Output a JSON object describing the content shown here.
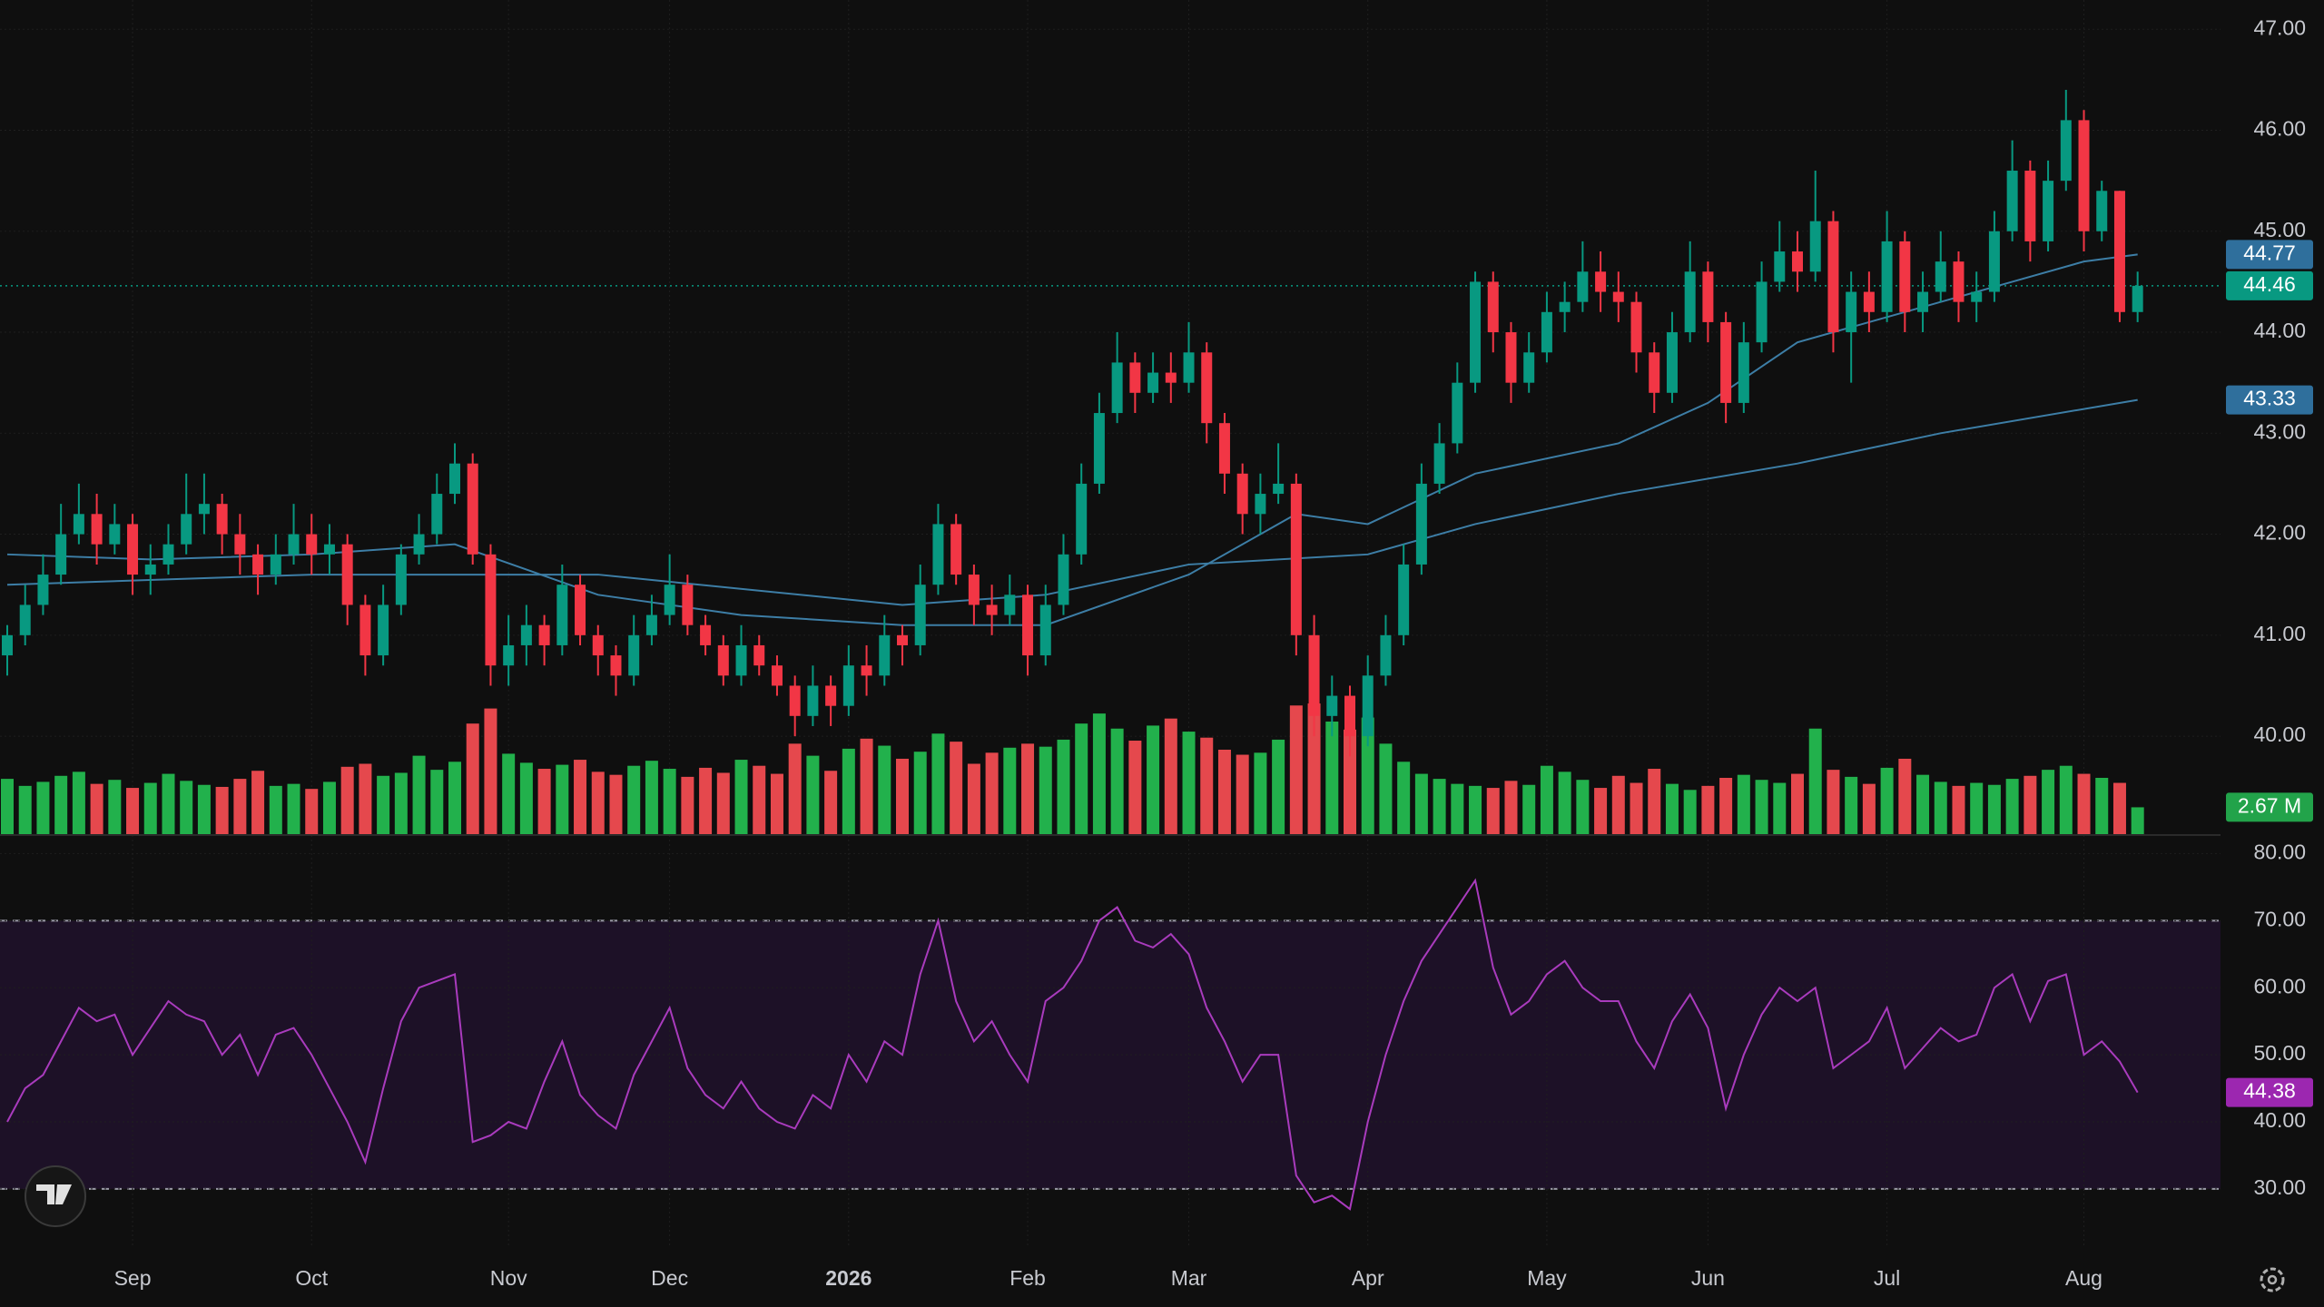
{
  "chart_data": {
    "type": "candlestick",
    "up_color": "#089981",
    "down_color": "#f23645",
    "ylim": [
      39.03,
      47.29
    ],
    "yticks": [
      {
        "value": 40,
        "label": "40.00"
      },
      {
        "value": 41,
        "label": "41.00"
      },
      {
        "value": 42,
        "label": "42.00"
      },
      {
        "value": 43,
        "label": "43.00"
      },
      {
        "value": 44,
        "label": "44.00"
      },
      {
        "value": 45,
        "label": "45.00"
      },
      {
        "value": 46,
        "label": "46.00"
      },
      {
        "value": 47,
        "label": "47.00"
      }
    ],
    "xticks": [
      {
        "value": 7,
        "label": "Sep"
      },
      {
        "value": 17,
        "label": "Oct"
      },
      {
        "value": 28,
        "label": "Nov"
      },
      {
        "value": 37,
        "label": "Dec"
      },
      {
        "value": 47,
        "label": "2026"
      },
      {
        "value": 57,
        "label": "Feb"
      },
      {
        "value": 66,
        "label": "Mar"
      },
      {
        "value": 76,
        "label": "Apr"
      },
      {
        "value": 86,
        "label": "May"
      },
      {
        "value": 95,
        "label": "Jun"
      },
      {
        "value": 105,
        "label": "Jul"
      },
      {
        "value": 116,
        "label": "Aug"
      }
    ],
    "grid": true,
    "candles": [
      [
        40.8,
        41.1,
        40.6,
        41.0
      ],
      [
        41.0,
        41.5,
        40.9,
        41.3
      ],
      [
        41.3,
        41.8,
        41.2,
        41.6
      ],
      [
        41.6,
        42.3,
        41.5,
        42.0
      ],
      [
        42.0,
        42.5,
        41.9,
        42.2
      ],
      [
        42.2,
        42.4,
        41.7,
        41.9
      ],
      [
        41.9,
        42.3,
        41.8,
        42.1
      ],
      [
        42.1,
        42.2,
        41.4,
        41.6
      ],
      [
        41.6,
        41.9,
        41.4,
        41.7
      ],
      [
        41.7,
        42.1,
        41.6,
        41.9
      ],
      [
        41.9,
        42.6,
        41.8,
        42.2
      ],
      [
        42.2,
        42.6,
        42.0,
        42.3
      ],
      [
        42.3,
        42.4,
        41.8,
        42.0
      ],
      [
        42.0,
        42.2,
        41.6,
        41.8
      ],
      [
        41.8,
        41.9,
        41.4,
        41.6
      ],
      [
        41.6,
        42.0,
        41.5,
        41.8
      ],
      [
        41.8,
        42.3,
        41.7,
        42.0
      ],
      [
        42.0,
        42.2,
        41.6,
        41.8
      ],
      [
        41.8,
        42.1,
        41.6,
        41.9
      ],
      [
        41.9,
        42.0,
        41.1,
        41.3
      ],
      [
        41.3,
        41.4,
        40.6,
        40.8
      ],
      [
        40.8,
        41.5,
        40.7,
        41.3
      ],
      [
        41.3,
        41.9,
        41.2,
        41.8
      ],
      [
        41.8,
        42.2,
        41.7,
        42.0
      ],
      [
        42.0,
        42.6,
        41.9,
        42.4
      ],
      [
        42.4,
        42.9,
        42.3,
        42.7
      ],
      [
        42.7,
        42.8,
        41.7,
        41.8
      ],
      [
        41.8,
        41.9,
        40.5,
        40.7
      ],
      [
        40.7,
        41.2,
        40.5,
        40.9
      ],
      [
        40.9,
        41.3,
        40.7,
        41.1
      ],
      [
        41.1,
        41.2,
        40.7,
        40.9
      ],
      [
        40.9,
        41.7,
        40.8,
        41.5
      ],
      [
        41.5,
        41.6,
        40.9,
        41.0
      ],
      [
        41.0,
        41.1,
        40.6,
        40.8
      ],
      [
        40.8,
        40.9,
        40.4,
        40.6
      ],
      [
        40.6,
        41.2,
        40.5,
        41.0
      ],
      [
        41.0,
        41.4,
        40.9,
        41.2
      ],
      [
        41.2,
        41.8,
        41.1,
        41.5
      ],
      [
        41.5,
        41.6,
        41.0,
        41.1
      ],
      [
        41.1,
        41.2,
        40.8,
        40.9
      ],
      [
        40.9,
        41.0,
        40.5,
        40.6
      ],
      [
        40.6,
        41.1,
        40.5,
        40.9
      ],
      [
        40.9,
        41.0,
        40.6,
        40.7
      ],
      [
        40.7,
        40.8,
        40.4,
        40.5
      ],
      [
        40.5,
        40.6,
        40.0,
        40.2
      ],
      [
        40.2,
        40.7,
        40.1,
        40.5
      ],
      [
        40.5,
        40.6,
        40.1,
        40.3
      ],
      [
        40.3,
        40.9,
        40.2,
        40.7
      ],
      [
        40.7,
        40.9,
        40.4,
        40.6
      ],
      [
        40.6,
        41.2,
        40.5,
        41.0
      ],
      [
        41.0,
        41.1,
        40.7,
        40.9
      ],
      [
        40.9,
        41.7,
        40.8,
        41.5
      ],
      [
        41.5,
        42.3,
        41.4,
        42.1
      ],
      [
        42.1,
        42.2,
        41.5,
        41.6
      ],
      [
        41.6,
        41.7,
        41.1,
        41.3
      ],
      [
        41.3,
        41.5,
        41.0,
        41.2
      ],
      [
        41.2,
        41.6,
        41.1,
        41.4
      ],
      [
        41.4,
        41.5,
        40.6,
        40.8
      ],
      [
        40.8,
        41.5,
        40.7,
        41.3
      ],
      [
        41.3,
        42.0,
        41.2,
        41.8
      ],
      [
        41.8,
        42.7,
        41.7,
        42.5
      ],
      [
        42.5,
        43.4,
        42.4,
        43.2
      ],
      [
        43.2,
        44.0,
        43.1,
        43.7
      ],
      [
        43.7,
        43.8,
        43.2,
        43.4
      ],
      [
        43.4,
        43.8,
        43.3,
        43.6
      ],
      [
        43.6,
        43.8,
        43.3,
        43.5
      ],
      [
        43.5,
        44.1,
        43.4,
        43.8
      ],
      [
        43.8,
        43.9,
        42.9,
        43.1
      ],
      [
        43.1,
        43.2,
        42.4,
        42.6
      ],
      [
        42.6,
        42.7,
        42.0,
        42.2
      ],
      [
        42.2,
        42.6,
        42.0,
        42.4
      ],
      [
        42.4,
        42.9,
        42.3,
        42.5
      ],
      [
        42.5,
        42.6,
        40.8,
        41.0
      ],
      [
        41.0,
        41.2,
        40.0,
        40.2
      ],
      [
        40.2,
        40.6,
        40.0,
        40.4
      ],
      [
        40.4,
        40.5,
        39.8,
        40.0
      ],
      [
        40.0,
        40.8,
        39.9,
        40.6
      ],
      [
        40.6,
        41.2,
        40.5,
        41.0
      ],
      [
        41.0,
        41.9,
        40.9,
        41.7
      ],
      [
        41.7,
        42.7,
        41.6,
        42.5
      ],
      [
        42.5,
        43.1,
        42.4,
        42.9
      ],
      [
        42.9,
        43.7,
        42.8,
        43.5
      ],
      [
        43.5,
        44.6,
        43.4,
        44.5
      ],
      [
        44.5,
        44.6,
        43.8,
        44.0
      ],
      [
        44.0,
        44.1,
        43.3,
        43.5
      ],
      [
        43.5,
        44.0,
        43.4,
        43.8
      ],
      [
        43.8,
        44.4,
        43.7,
        44.2
      ],
      [
        44.2,
        44.5,
        44.0,
        44.3
      ],
      [
        44.3,
        44.9,
        44.2,
        44.6
      ],
      [
        44.6,
        44.8,
        44.2,
        44.4
      ],
      [
        44.4,
        44.6,
        44.1,
        44.3
      ],
      [
        44.3,
        44.4,
        43.6,
        43.8
      ],
      [
        43.8,
        43.9,
        43.2,
        43.4
      ],
      [
        43.4,
        44.2,
        43.3,
        44.0
      ],
      [
        44.0,
        44.9,
        43.9,
        44.6
      ],
      [
        44.6,
        44.7,
        43.9,
        44.1
      ],
      [
        44.1,
        44.2,
        43.1,
        43.3
      ],
      [
        43.3,
        44.1,
        43.2,
        43.9
      ],
      [
        43.9,
        44.7,
        43.8,
        44.5
      ],
      [
        44.5,
        45.1,
        44.4,
        44.8
      ],
      [
        44.8,
        45.0,
        44.4,
        44.6
      ],
      [
        44.6,
        45.6,
        44.5,
        45.1
      ],
      [
        45.1,
        45.2,
        43.8,
        44.0
      ],
      [
        44.0,
        44.6,
        43.5,
        44.4
      ],
      [
        44.4,
        44.6,
        44.0,
        44.2
      ],
      [
        44.2,
        45.2,
        44.1,
        44.9
      ],
      [
        44.9,
        45.0,
        44.0,
        44.2
      ],
      [
        44.2,
        44.6,
        44.0,
        44.4
      ],
      [
        44.4,
        45.0,
        44.3,
        44.7
      ],
      [
        44.7,
        44.8,
        44.1,
        44.3
      ],
      [
        44.3,
        44.6,
        44.1,
        44.4
      ],
      [
        44.4,
        45.2,
        44.3,
        45.0
      ],
      [
        45.0,
        45.9,
        44.9,
        45.6
      ],
      [
        45.6,
        45.7,
        44.7,
        44.9
      ],
      [
        44.9,
        45.7,
        44.8,
        45.5
      ],
      [
        45.5,
        46.4,
        45.4,
        46.1
      ],
      [
        46.1,
        46.2,
        44.8,
        45.0
      ],
      [
        45.0,
        45.5,
        44.9,
        45.4
      ],
      [
        45.4,
        45.4,
        44.1,
        44.2
      ],
      [
        44.2,
        44.6,
        44.1,
        44.46
      ]
    ],
    "last_price_color": "#089981",
    "ma_fast": {
      "color": "#3d7ea6",
      "label_color": "#2f6f9c",
      "x": [
        0,
        8,
        17,
        25,
        33,
        41,
        50,
        58,
        66,
        72,
        76,
        82,
        90,
        95,
        100,
        106,
        112,
        116,
        119
      ],
      "values": [
        41.8,
        41.75,
        41.8,
        41.9,
        41.4,
        41.2,
        41.1,
        41.1,
        41.6,
        42.2,
        42.1,
        42.6,
        42.9,
        43.3,
        43.9,
        44.2,
        44.5,
        44.7,
        44.77
      ]
    },
    "ma_slow": {
      "color": "#3d7ea6",
      "label_color": "#2f6f9c",
      "x": [
        0,
        17,
        33,
        50,
        58,
        66,
        76,
        82,
        90,
        100,
        108,
        119
      ],
      "values": [
        41.5,
        41.6,
        41.6,
        41.3,
        41.4,
        41.7,
        41.8,
        42.1,
        42.4,
        42.7,
        43.0,
        43.33
      ]
    },
    "volume": {
      "ylim": [
        0,
        83
      ],
      "up_color": "#22b14c",
      "down_color": "#e5484d",
      "label_color": "#22a34a",
      "last_label": "2.67 M",
      "values": [
        5.5,
        4.8,
        5.2,
        5.8,
        6.2,
        5.0,
        5.4,
        4.6,
        5.1,
        6.0,
        5.3,
        4.9,
        4.7,
        5.5,
        6.3,
        4.8,
        5.0,
        4.5,
        5.2,
        6.7,
        7.0,
        5.8,
        6.1,
        7.8,
        6.4,
        7.2,
        11.0,
        12.5,
        8.0,
        7.1,
        6.5,
        6.9,
        7.4,
        6.2,
        5.9,
        6.8,
        7.3,
        6.5,
        5.7,
        6.6,
        6.1,
        7.4,
        6.8,
        6.0,
        9.0,
        7.8,
        6.3,
        8.5,
        9.5,
        8.8,
        7.5,
        8.2,
        10.0,
        9.2,
        7.0,
        8.1,
        8.6,
        9.0,
        8.7,
        9.4,
        11.0,
        12.0,
        10.5,
        9.3,
        10.8,
        11.5,
        10.2,
        9.6,
        8.4,
        7.9,
        8.1,
        9.4,
        12.8,
        13.0,
        11.2,
        10.4,
        11.6,
        9.0,
        7.2,
        6.0,
        5.5,
        5.0,
        4.8,
        4.6,
        5.3,
        4.9,
        6.8,
        6.2,
        5.4,
        4.6,
        5.8,
        5.1,
        6.5,
        5.0,
        4.4,
        4.8,
        5.6,
        5.9,
        5.4,
        5.1,
        6.0,
        10.5,
        6.4,
        5.7,
        5.0,
        6.6,
        7.5,
        5.9,
        5.2,
        4.8,
        5.1,
        4.9,
        5.5,
        5.8,
        6.4,
        6.8,
        6.0,
        5.6,
        5.1,
        2.67
      ]
    },
    "rsi": {
      "color": "#a93bbd",
      "label_color": "#9c27b0",
      "band_fill": "#1d1127",
      "ylim": [
        21.6,
        82.9
      ],
      "yticks": [
        {
          "value": 30,
          "label": "30.00"
        },
        {
          "value": 40,
          "label": "40.00"
        },
        {
          "value": 50,
          "label": "50.00"
        },
        {
          "value": 60,
          "label": "60.00"
        },
        {
          "value": 70,
          "label": "70.00"
        },
        {
          "value": 80,
          "label": "80.00"
        }
      ],
      "bands": [
        30,
        70
      ],
      "values": [
        40,
        45,
        47,
        52,
        57,
        55,
        56,
        50,
        54,
        58,
        56,
        55,
        50,
        53,
        47,
        53,
        54,
        50,
        45,
        40,
        34,
        45,
        55,
        60,
        61,
        62,
        37,
        38,
        40,
        39,
        46,
        52,
        44,
        41,
        39,
        47,
        52,
        57,
        48,
        44,
        42,
        46,
        42,
        40,
        39,
        44,
        42,
        50,
        46,
        52,
        50,
        62,
        70,
        58,
        52,
        55,
        50,
        46,
        58,
        60,
        64,
        70,
        72,
        67,
        66,
        68,
        65,
        57,
        52,
        46,
        50,
        50,
        32,
        28,
        29,
        27,
        40,
        50,
        58,
        64,
        68,
        72,
        76,
        63,
        56,
        58,
        62,
        64,
        60,
        58,
        58,
        52,
        48,
        55,
        59,
        54,
        42,
        50,
        56,
        60,
        58,
        60,
        48,
        50,
        52,
        57,
        48,
        51,
        54,
        52,
        53,
        60,
        62,
        55,
        61,
        62,
        50,
        52,
        49,
        44.38
      ]
    }
  }
}
